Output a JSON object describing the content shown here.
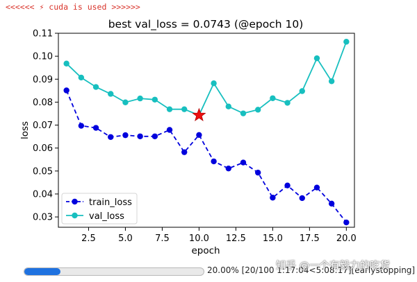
{
  "log": {
    "text": "<<<<<< ⚡ cuda is used >>>>>>"
  },
  "chart_data": {
    "type": "line",
    "title": "best val_loss = 0.0743 (@epoch 10)",
    "xlabel": "epoch",
    "ylabel": "loss",
    "xlim": [
      0.45,
      20.55
    ],
    "ylim": [
      0.0255,
      0.11
    ],
    "xticks": [
      2.5,
      5.0,
      7.5,
      10.0,
      12.5,
      15.0,
      17.5,
      20.0
    ],
    "xtick_labels": [
      "2.5",
      "5.0",
      "7.5",
      "10.0",
      "12.5",
      "15.0",
      "17.5",
      "20.0"
    ],
    "yticks": [
      0.03,
      0.04,
      0.05,
      0.06,
      0.07,
      0.08,
      0.09,
      0.1,
      0.11
    ],
    "ytick_labels": [
      "0.03",
      "0.04",
      "0.05",
      "0.06",
      "0.07",
      "0.08",
      "0.09",
      "0.10",
      "0.11"
    ],
    "grid": false,
    "legend_position": "lower-left",
    "x": [
      1,
      2,
      3,
      4,
      5,
      6,
      7,
      8,
      9,
      10,
      11,
      12,
      13,
      14,
      15,
      16,
      17,
      18,
      19,
      20
    ],
    "series": [
      {
        "name": "train_loss",
        "color": "#0000dd",
        "style": "dashed",
        "marker": "circle",
        "values": [
          0.0851,
          0.0697,
          0.0688,
          0.0648,
          0.0656,
          0.0651,
          0.0651,
          0.0679,
          0.0582,
          0.0657,
          0.0542,
          0.0511,
          0.0537,
          0.0493,
          0.0384,
          0.0437,
          0.0382,
          0.0428,
          0.0358,
          0.0276
        ]
      },
      {
        "name": "val_loss",
        "color": "#17bfbf",
        "style": "solid",
        "marker": "circle",
        "values": [
          0.0968,
          0.0907,
          0.0866,
          0.0836,
          0.0799,
          0.0816,
          0.0811,
          0.0769,
          0.0769,
          0.0743,
          0.0882,
          0.0781,
          0.0751,
          0.0767,
          0.0817,
          0.0797,
          0.0848,
          0.0991,
          0.0891,
          0.1063
        ]
      }
    ],
    "best_marker": {
      "x": 10,
      "y": 0.0743,
      "color": "#ee1111",
      "symbol": "star"
    }
  },
  "progress": {
    "fraction": 0.2,
    "text": "20.00% [20/100 1:17:04<5:08:17][earlystopping]",
    "color": "#1f72e0"
  },
  "watermark": {
    "text": "知乎 @一个有毅力的吃货"
  }
}
